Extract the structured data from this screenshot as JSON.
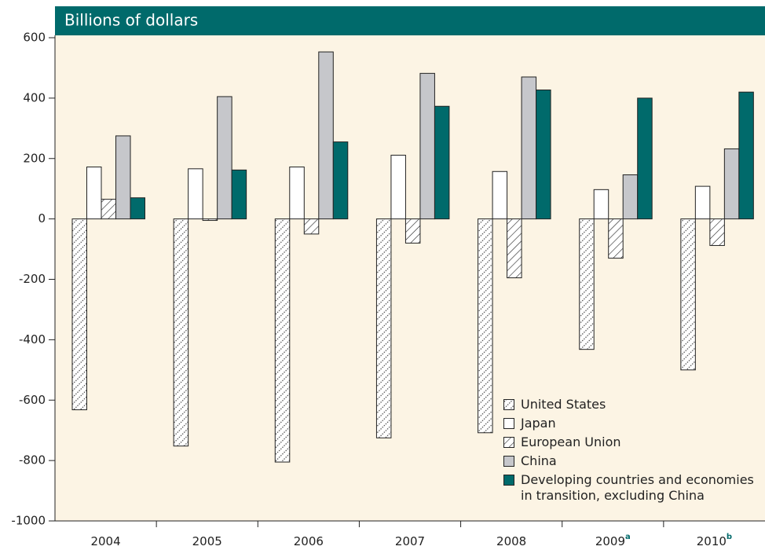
{
  "chart_data": {
    "type": "bar",
    "title": "Billions of dollars",
    "categories": [
      "2004",
      "2005",
      "2006",
      "2007",
      "2008",
      "2009",
      "2010"
    ],
    "category_notes": [
      null,
      null,
      null,
      null,
      null,
      "a",
      "b"
    ],
    "series": [
      {
        "name": "United States",
        "color": "#ffffff",
        "pattern": "dots",
        "values": [
          -632,
          -752,
          -805,
          -725,
          -708,
          -432,
          -500
        ]
      },
      {
        "name": "Japan",
        "color": "#ffffff",
        "pattern": null,
        "values": [
          172,
          166,
          172,
          211,
          157,
          97,
          108
        ]
      },
      {
        "name": "European Union",
        "color": "#ffffff",
        "pattern": "hatch",
        "values": [
          65,
          -5,
          -50,
          -80,
          -195,
          -130,
          -88
        ]
      },
      {
        "name": "China",
        "color": "#c6c7cb",
        "pattern": null,
        "values": [
          275,
          405,
          553,
          482,
          470,
          146,
          232
        ]
      },
      {
        "name": "Developing countries and economies in transition, excluding China",
        "color": "#006a6b",
        "pattern": null,
        "values": [
          70,
          162,
          255,
          373,
          427,
          400,
          420
        ]
      }
    ],
    "ylim": [
      -1000,
      600
    ],
    "yticks": [
      -1000,
      -800,
      -600,
      -400,
      -200,
      0,
      200,
      400,
      600
    ],
    "grid": false,
    "legend": "lower right"
  }
}
